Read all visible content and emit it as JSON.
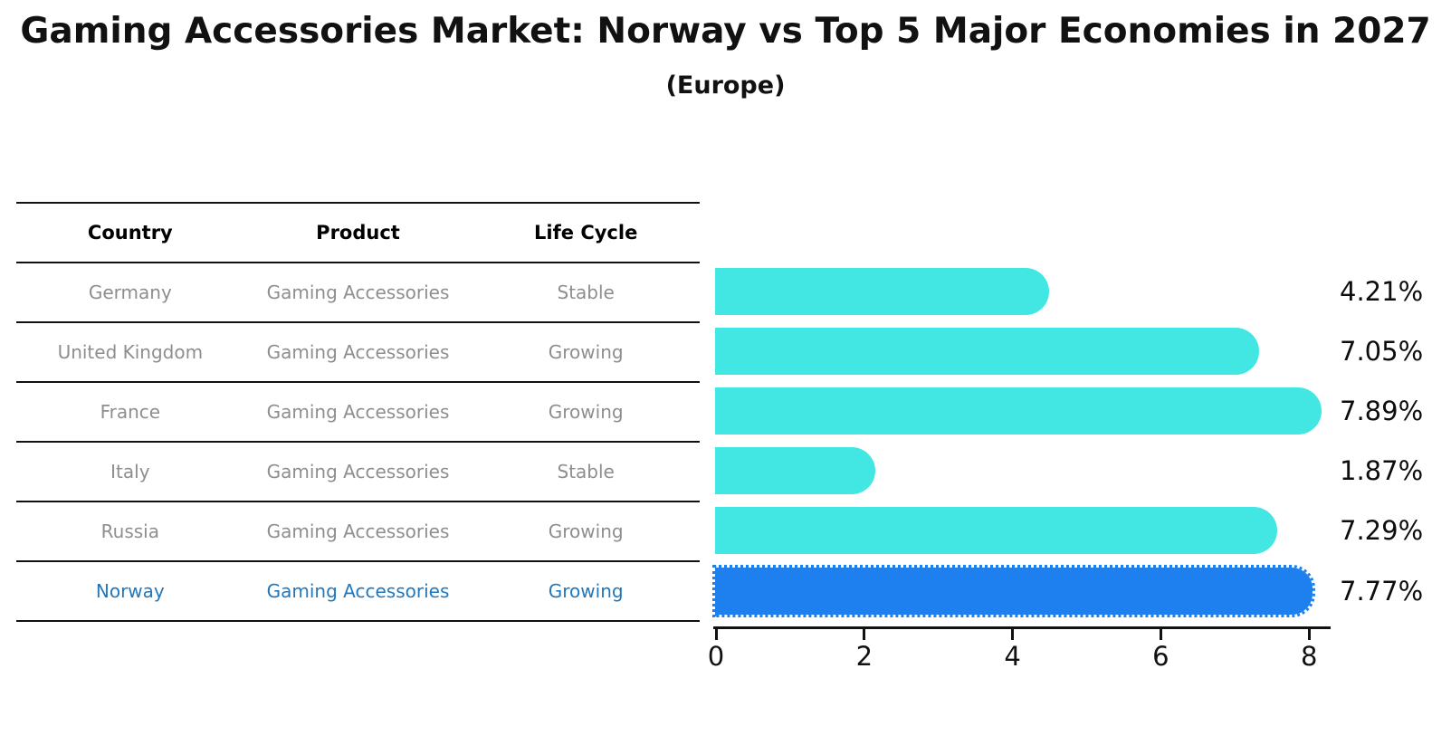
{
  "title": "Gaming Accessories Market: Norway vs Top 5 Major Economies in 2027",
  "subtitle": "(Europe)",
  "table": {
    "headers": [
      "Country",
      "Product",
      "Life Cycle"
    ],
    "rows": [
      {
        "country": "Germany",
        "product": "Gaming Accessories",
        "life_cycle": "Stable",
        "highlighted": false
      },
      {
        "country": "United Kingdom",
        "product": "Gaming Accessories",
        "life_cycle": "Growing",
        "highlighted": false
      },
      {
        "country": "France",
        "product": "Gaming Accessories",
        "life_cycle": "Growing",
        "highlighted": false
      },
      {
        "country": "Italy",
        "product": "Gaming Accessories",
        "life_cycle": "Stable",
        "highlighted": false
      },
      {
        "country": "Russia",
        "product": "Gaming Accessories",
        "life_cycle": "Growing",
        "highlighted": false
      },
      {
        "country": "Norway",
        "product": "Gaming Accessories",
        "life_cycle": "Growing",
        "highlighted": true
      }
    ]
  },
  "chart_data": {
    "type": "bar",
    "orientation": "horizontal",
    "categories": [
      "Germany",
      "United Kingdom",
      "France",
      "Italy",
      "Russia",
      "Norway"
    ],
    "values": [
      4.21,
      7.05,
      7.89,
      1.87,
      7.29,
      7.77
    ],
    "value_labels": [
      "4.21%",
      "7.05%",
      "7.89%",
      "1.87%",
      "7.29%",
      "7.77%"
    ],
    "x_ticks": [
      0,
      2,
      4,
      6,
      8
    ],
    "x_tick_labels": [
      "0",
      "2",
      "4",
      "6",
      "8"
    ],
    "xlim": [
      0,
      8.3
    ],
    "grid": false,
    "legend": false,
    "highlight_index": 5,
    "title": "Gaming Accessories Market: Norway vs Top 5 Major Economies in 2027",
    "subtitle": "(Europe)"
  },
  "colors": {
    "bar": "#42E6E2",
    "highlight_bar": "#1E80EE",
    "highlight_text": "#2278BD",
    "row_text": "#8E8E8E",
    "header_text": "#000000",
    "axis": "#111111"
  }
}
